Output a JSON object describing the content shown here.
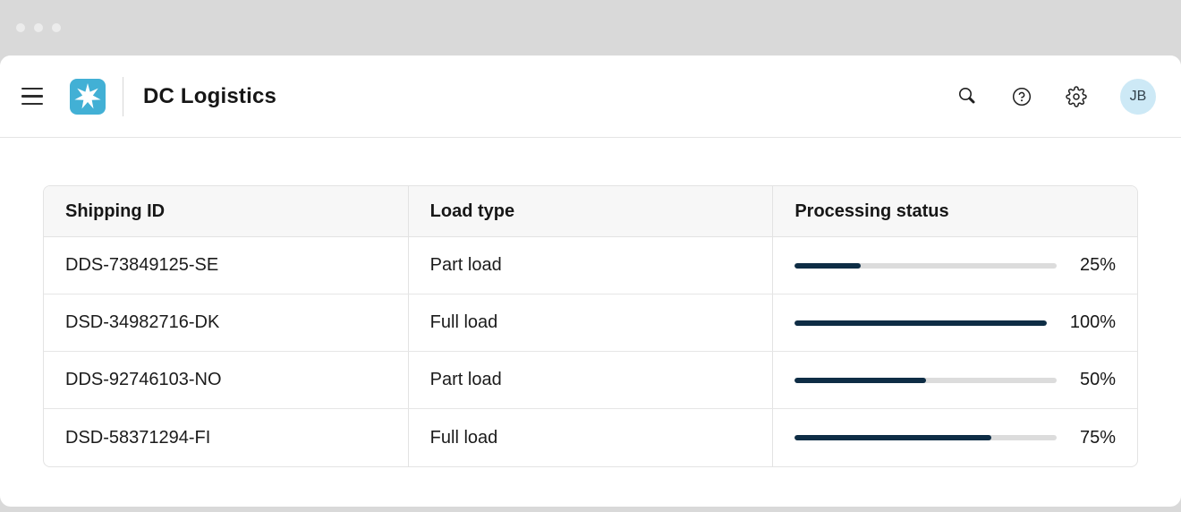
{
  "titlebar": {
    "dot_icons": [
      "window-dot",
      "window-dot",
      "window-dot"
    ]
  },
  "header": {
    "title": "DC Logistics",
    "menu_icon": "hamburger-menu-icon",
    "logo_icon": "maersk-star-icon",
    "action_icons": [
      "search-icon",
      "help-icon",
      "gear-icon"
    ],
    "avatar_initials": "JB"
  },
  "table": {
    "columns": [
      "Shipping ID",
      "Load type",
      "Processing status"
    ],
    "rows": [
      {
        "shipping_id": "DDS-73849125-SE",
        "load_type": "Part load",
        "progress_percent": 25,
        "progress_label": "25%"
      },
      {
        "shipping_id": "DSD-34982716-DK",
        "load_type": "Full load",
        "progress_percent": 100,
        "progress_label": "100%"
      },
      {
        "shipping_id": "DDS-92746103-NO",
        "load_type": "Part load",
        "progress_percent": 50,
        "progress_label": "50%"
      },
      {
        "shipping_id": "DSD-58371294-FI",
        "load_type": "Full load",
        "progress_percent": 75,
        "progress_label": "75%"
      }
    ]
  },
  "colors": {
    "titlebar_bg": "#d9d9d9",
    "logo_blue": "#42b0d5",
    "avatar_bg": "#cde9f6",
    "avatar_text": "#33424c",
    "progress_fill": "#0e2d45",
    "progress_track": "#dcdcdc",
    "table_header_bg": "#f7f7f7"
  }
}
